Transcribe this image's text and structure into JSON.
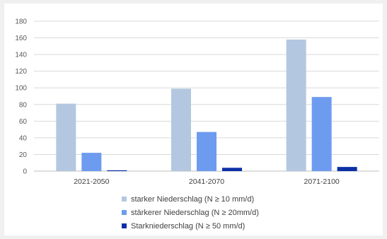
{
  "chart_data": {
    "type": "bar",
    "title": "",
    "xlabel": "",
    "ylabel": "",
    "ylim": [
      0,
      180
    ],
    "yticks": [
      0,
      20,
      40,
      60,
      80,
      100,
      120,
      140,
      160,
      180
    ],
    "grid": true,
    "legend_position": "bottom",
    "categories": [
      "2021-2050",
      "2041-2070",
      "2071-2100"
    ],
    "series": [
      {
        "name": "starker Niederschlag (N ≥ 10 mm/d)",
        "color": "#b4c7e0",
        "values": [
          81,
          99,
          158
        ]
      },
      {
        "name": "stärkerer Niederschlag (N ≥ 20mm/d)",
        "color": "#6d9bef",
        "values": [
          22,
          47,
          89
        ]
      },
      {
        "name": "Starkniederschlag (N ≥ 50 mm/d)",
        "color": "#0b2fa6",
        "values": [
          1,
          4,
          5
        ]
      }
    ]
  }
}
